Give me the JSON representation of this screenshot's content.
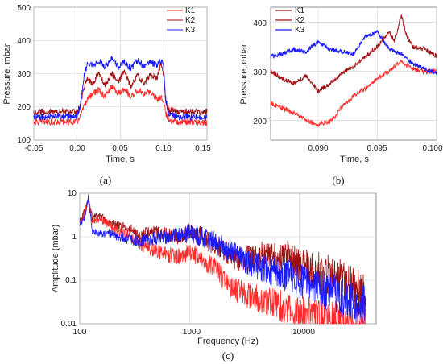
{
  "chart_data": [
    {
      "panel_label": "(a)",
      "type": "line",
      "xlabel": "Time, s",
      "ylabel": "Pressure, mbar",
      "xlim": [
        -0.05,
        0.15
      ],
      "ylim": [
        100,
        500
      ],
      "xticks": [
        "-0.05",
        "0.00",
        "0.05",
        "0.10",
        "0.15"
      ],
      "yticks": [
        "100",
        "200",
        "300",
        "400",
        "500"
      ],
      "grid": true,
      "legend": "top-right",
      "series": [
        {
          "name": "K1",
          "color": "#ff2a2a",
          "x": [
            -0.05,
            0.0,
            0.003,
            0.008,
            0.012,
            0.018,
            0.025,
            0.032,
            0.04,
            0.048,
            0.055,
            0.062,
            0.07,
            0.078,
            0.085,
            0.092,
            0.097,
            0.1,
            0.102,
            0.106,
            0.12,
            0.15
          ],
          "y": [
            155,
            155,
            170,
            200,
            225,
            240,
            250,
            230,
            260,
            240,
            255,
            230,
            250,
            240,
            245,
            225,
            230,
            220,
            180,
            160,
            155,
            152
          ]
        },
        {
          "name": "K2",
          "color": "#a01010",
          "x": [
            -0.05,
            0.0,
            0.003,
            0.008,
            0.012,
            0.018,
            0.025,
            0.032,
            0.04,
            0.048,
            0.055,
            0.062,
            0.07,
            0.078,
            0.085,
            0.092,
            0.097,
            0.1,
            0.102,
            0.106,
            0.12,
            0.15
          ],
          "y": [
            185,
            185,
            200,
            255,
            285,
            270,
            305,
            265,
            300,
            275,
            310,
            260,
            295,
            270,
            300,
            285,
            330,
            300,
            220,
            190,
            185,
            185
          ]
        },
        {
          "name": "K3",
          "color": "#1a1aff",
          "x": [
            -0.05,
            0.0,
            0.003,
            0.008,
            0.012,
            0.018,
            0.025,
            0.032,
            0.04,
            0.048,
            0.055,
            0.062,
            0.07,
            0.078,
            0.085,
            0.092,
            0.097,
            0.1,
            0.102,
            0.106,
            0.12,
            0.15
          ],
          "y": [
            170,
            172,
            195,
            290,
            330,
            325,
            340,
            320,
            345,
            320,
            335,
            315,
            340,
            320,
            335,
            325,
            340,
            320,
            230,
            175,
            170,
            168
          ]
        }
      ]
    },
    {
      "panel_label": "(b)",
      "type": "line",
      "xlabel": "Time, s",
      "ylabel": "Pressure, mbar",
      "xlim": [
        0.086,
        0.1
      ],
      "ylim": [
        160,
        430
      ],
      "xticks": [
        "0.090",
        "0.095",
        "0.100"
      ],
      "yticks": [
        "200",
        "300",
        "400"
      ],
      "grid": true,
      "legend": "top-left",
      "series": [
        {
          "name": "K1",
          "color": "#ff2a2a",
          "x": [
            0.086,
            0.087,
            0.088,
            0.089,
            0.09,
            0.091,
            0.0915,
            0.092,
            0.093,
            0.094,
            0.095,
            0.096,
            0.097,
            0.098,
            0.099,
            0.1
          ],
          "y": [
            235,
            225,
            215,
            200,
            192,
            198,
            210,
            228,
            250,
            265,
            285,
            300,
            320,
            305,
            298,
            300
          ]
        },
        {
          "name": "K2",
          "color": "#a01010",
          "x": [
            0.086,
            0.087,
            0.088,
            0.089,
            0.09,
            0.091,
            0.092,
            0.093,
            0.094,
            0.095,
            0.096,
            0.0965,
            0.097,
            0.0975,
            0.098,
            0.099,
            0.1
          ],
          "y": [
            300,
            285,
            275,
            290,
            260,
            275,
            295,
            310,
            330,
            350,
            380,
            360,
            415,
            370,
            350,
            345,
            330
          ]
        },
        {
          "name": "K3",
          "color": "#1a1aff",
          "x": [
            0.086,
            0.087,
            0.088,
            0.089,
            0.09,
            0.091,
            0.092,
            0.093,
            0.094,
            0.095,
            0.096,
            0.097,
            0.098,
            0.099,
            0.1
          ],
          "y": [
            330,
            335,
            345,
            340,
            360,
            345,
            340,
            335,
            370,
            380,
            345,
            335,
            315,
            305,
            295
          ]
        }
      ]
    },
    {
      "panel_label": "(c)",
      "type": "line",
      "xlabel": "Frequency (Hz)",
      "ylabel": "Amplitude (mbar)",
      "xscale": "log",
      "yscale": "log",
      "xlim": [
        100,
        50000
      ],
      "ylim": [
        0.01,
        10
      ],
      "xticks": [
        "100",
        "1000",
        "10000"
      ],
      "yticks": [
        "0.01",
        "0.1",
        "1",
        "10"
      ],
      "grid": true,
      "series": [
        {
          "name": "",
          "color": "#a01010",
          "x": [
            100,
            110,
            120,
            130,
            150,
            180,
            220,
            280,
            350,
            450,
            600,
            800,
            1000,
            1300,
            1700,
            2200,
            3000,
            4000,
            5000,
            6500,
            8000,
            10000,
            13000,
            17000,
            22000,
            30000,
            40000
          ],
          "y": [
            2.5,
            4,
            8,
            3,
            3.5,
            2.5,
            2,
            1.8,
            1.2,
            1.5,
            1.4,
            1.3,
            1.6,
            1.3,
            0.9,
            0.6,
            0.4,
            0.5,
            0.55,
            0.45,
            0.6,
            0.35,
            0.3,
            0.25,
            0.2,
            0.12,
            0.08
          ]
        },
        {
          "name": "",
          "color": "#ff2a2a",
          "x": [
            100,
            110,
            120,
            130,
            150,
            180,
            220,
            280,
            350,
            450,
            600,
            800,
            1000,
            1300,
            1700,
            2200,
            3000,
            4000,
            5000,
            6500,
            8000,
            10000,
            13000,
            17000,
            22000,
            30000,
            40000
          ],
          "y": [
            2.2,
            3.5,
            7,
            2.5,
            3,
            2.2,
            1.6,
            1.2,
            0.8,
            0.6,
            0.5,
            0.45,
            0.6,
            0.4,
            0.25,
            0.12,
            0.07,
            0.06,
            0.05,
            0.04,
            0.035,
            0.03,
            0.025,
            0.02,
            0.02,
            0.015,
            0.015
          ]
        },
        {
          "name": "",
          "color": "#1a1aff",
          "x": [
            100,
            110,
            120,
            130,
            150,
            180,
            220,
            280,
            350,
            450,
            600,
            800,
            1000,
            1300,
            1700,
            2200,
            3000,
            4000,
            5000,
            6500,
            8000,
            10000,
            13000,
            17000,
            22000,
            30000,
            40000
          ],
          "y": [
            2,
            3,
            9,
            1.5,
            1.3,
            1.4,
            1.2,
            1,
            0.9,
            1.1,
            1.2,
            1.4,
            1.5,
            1.3,
            1,
            0.7,
            0.45,
            0.3,
            0.25,
            0.22,
            0.2,
            0.15,
            0.12,
            0.1,
            0.08,
            0.06,
            0.05
          ]
        }
      ]
    }
  ]
}
